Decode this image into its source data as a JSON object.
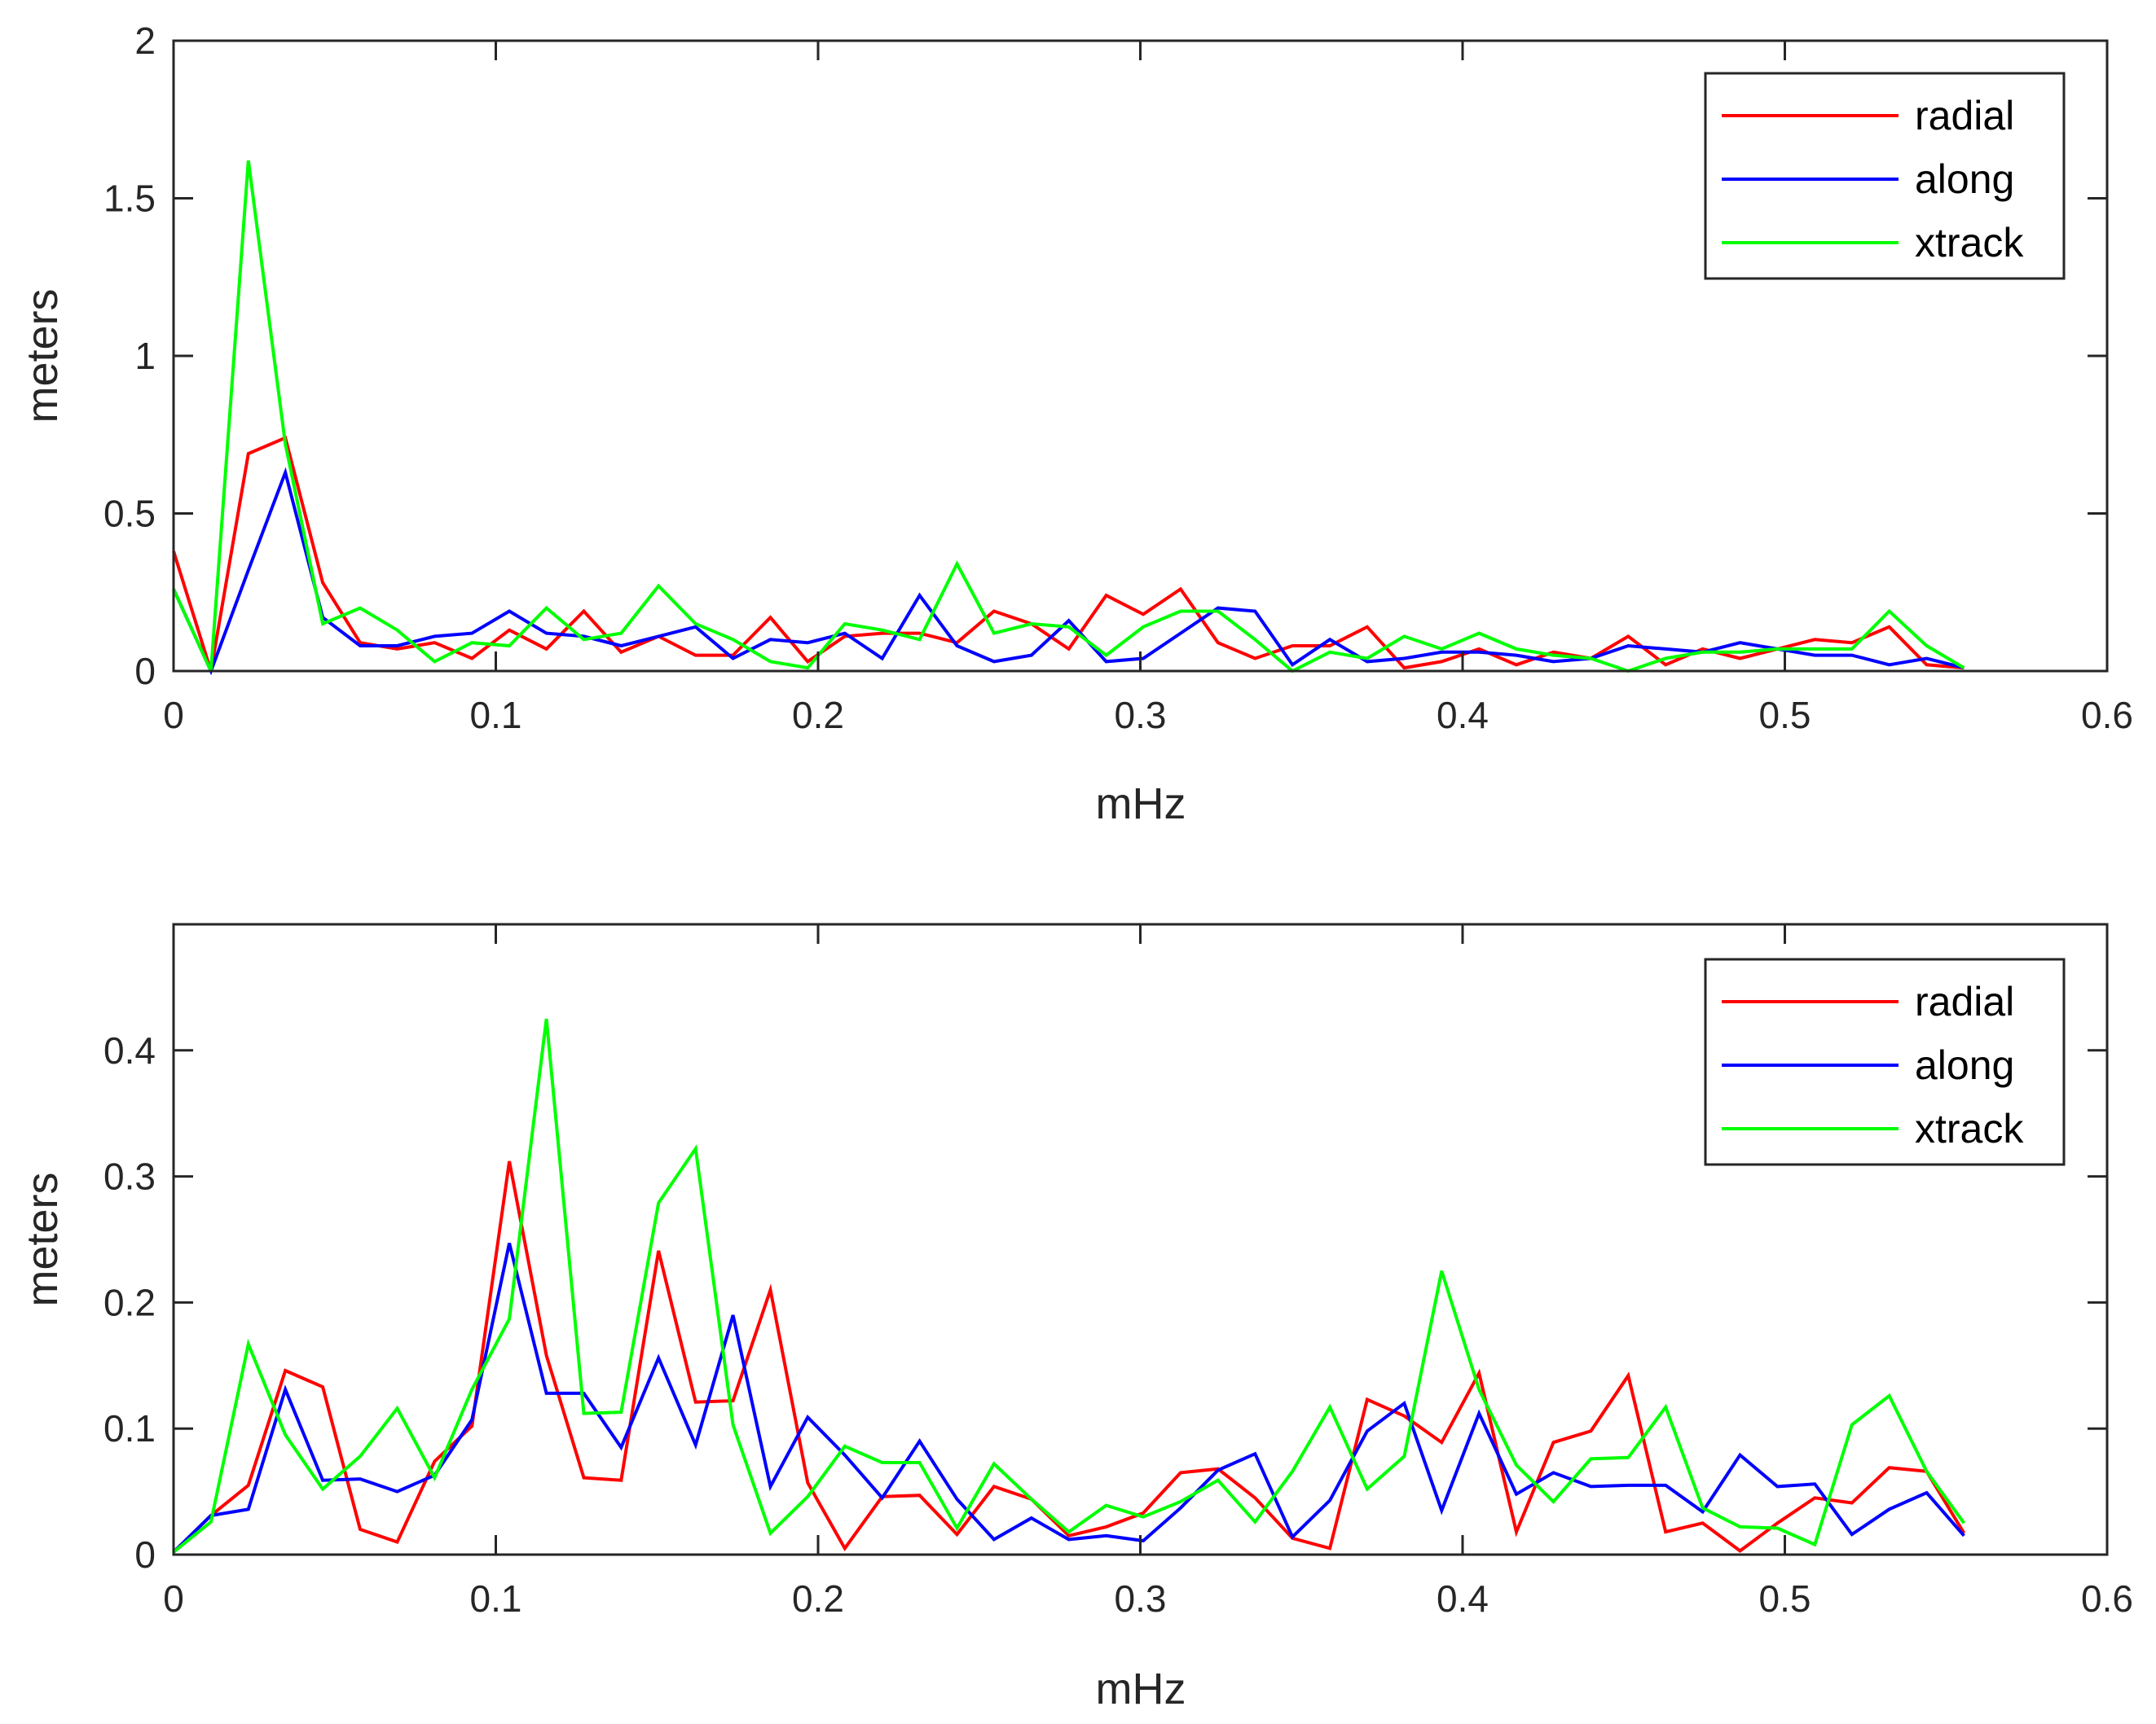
{
  "chart_data": [
    {
      "type": "line",
      "xlabel": "mHz",
      "ylabel": "meters",
      "xlim": [
        0,
        0.6
      ],
      "ylim": [
        0,
        2
      ],
      "xticks": [
        0,
        0.1,
        0.2,
        0.3,
        0.4,
        0.5,
        0.6
      ],
      "xtick_labels": [
        "0",
        "0.1",
        "0.2",
        "0.3",
        "0.4",
        "0.5",
        "0.6"
      ],
      "yticks": [
        0,
        0.5,
        1,
        1.5,
        2
      ],
      "ytick_labels": [
        "0",
        "0.5",
        "1",
        "1.5",
        "2"
      ],
      "legend_position": "top-right",
      "x": [
        0,
        0.0116,
        0.0232,
        0.0347,
        0.0463,
        0.0579,
        0.0694,
        0.081,
        0.0926,
        0.1042,
        0.1157,
        0.1273,
        0.1389,
        0.1505,
        0.162,
        0.1736,
        0.1852,
        0.1968,
        0.2083,
        0.2199,
        0.2315,
        0.2431,
        0.2546,
        0.2662,
        0.2778,
        0.2894,
        0.3009,
        0.3125,
        0.3241,
        0.3356,
        0.3472,
        0.3588,
        0.3704,
        0.3819,
        0.3935,
        0.4051,
        0.4167,
        0.4282,
        0.4398,
        0.4514,
        0.463,
        0.4745,
        0.4861,
        0.4977,
        0.5093,
        0.5208,
        0.5324,
        0.544,
        0.5556
      ],
      "series": [
        {
          "name": "radial",
          "color": "#ff0000",
          "values": [
            0.38,
            0.0,
            0.69,
            0.74,
            0.28,
            0.09,
            0.07,
            0.09,
            0.04,
            0.13,
            0.07,
            0.19,
            0.06,
            0.11,
            0.05,
            0.05,
            0.17,
            0.03,
            0.11,
            0.12,
            0.12,
            0.09,
            0.19,
            0.15,
            0.07,
            0.24,
            0.18,
            0.26,
            0.09,
            0.04,
            0.08,
            0.08,
            0.14,
            0.01,
            0.03,
            0.07,
            0.02,
            0.06,
            0.04,
            0.11,
            0.02,
            0.07,
            0.04,
            0.07,
            0.1,
            0.09,
            0.14,
            0.02,
            0.01
          ]
        },
        {
          "name": "along",
          "color": "#0000ff",
          "values": [
            0.26,
            0.0,
            0.32,
            0.63,
            0.17,
            0.08,
            0.08,
            0.11,
            0.12,
            0.19,
            0.12,
            0.11,
            0.08,
            0.11,
            0.14,
            0.04,
            0.1,
            0.09,
            0.12,
            0.04,
            0.24,
            0.08,
            0.03,
            0.05,
            0.16,
            0.03,
            0.04,
            0.12,
            0.2,
            0.19,
            0.02,
            0.1,
            0.03,
            0.04,
            0.06,
            0.06,
            0.05,
            0.03,
            0.04,
            0.08,
            0.07,
            0.06,
            0.09,
            0.07,
            0.05,
            0.05,
            0.02,
            0.04,
            0.01
          ]
        },
        {
          "name": "xtrack",
          "color": "#00ff00",
          "values": [
            0.26,
            0.0,
            1.62,
            0.72,
            0.15,
            0.2,
            0.13,
            0.03,
            0.09,
            0.08,
            0.2,
            0.1,
            0.12,
            0.27,
            0.15,
            0.1,
            0.03,
            0.01,
            0.15,
            0.13,
            0.1,
            0.34,
            0.12,
            0.15,
            0.14,
            0.05,
            0.14,
            0.19,
            0.19,
            0.1,
            0.0,
            0.06,
            0.04,
            0.11,
            0.07,
            0.12,
            0.07,
            0.05,
            0.04,
            0.0,
            0.04,
            0.06,
            0.06,
            0.07,
            0.07,
            0.07,
            0.19,
            0.08,
            0.01
          ]
        }
      ]
    },
    {
      "type": "line",
      "xlabel": "mHz",
      "ylabel": "meters",
      "xlim": [
        0,
        0.6
      ],
      "ylim": [
        0,
        0.5
      ],
      "xticks": [
        0,
        0.1,
        0.2,
        0.3,
        0.4,
        0.5,
        0.6
      ],
      "xtick_labels": [
        "0",
        "0.1",
        "0.2",
        "0.3",
        "0.4",
        "0.5",
        "0.6"
      ],
      "yticks": [
        0,
        0.1,
        0.2,
        0.3,
        0.4
      ],
      "ytick_labels": [
        "0",
        "0.1",
        "0.2",
        "0.3",
        "0.4"
      ],
      "legend_position": "top-right",
      "x": [
        0,
        0.0116,
        0.0232,
        0.0347,
        0.0463,
        0.0579,
        0.0694,
        0.081,
        0.0926,
        0.1042,
        0.1157,
        0.1273,
        0.1389,
        0.1505,
        0.162,
        0.1736,
        0.1852,
        0.1968,
        0.2083,
        0.2199,
        0.2315,
        0.2431,
        0.2546,
        0.2662,
        0.2778,
        0.2894,
        0.3009,
        0.3125,
        0.3241,
        0.3356,
        0.3472,
        0.3588,
        0.3704,
        0.3819,
        0.3935,
        0.4051,
        0.4167,
        0.4282,
        0.4398,
        0.4514,
        0.463,
        0.4745,
        0.4861,
        0.4977,
        0.5093,
        0.5208,
        0.5324,
        0.544,
        0.5556
      ],
      "series": [
        {
          "name": "radial",
          "color": "#ff0000",
          "values": [
            0.002,
            0.031,
            0.055,
            0.146,
            0.133,
            0.02,
            0.01,
            0.074,
            0.102,
            0.312,
            0.158,
            0.061,
            0.059,
            0.241,
            0.121,
            0.122,
            0.21,
            0.057,
            0.005,
            0.046,
            0.047,
            0.016,
            0.054,
            0.044,
            0.015,
            0.022,
            0.033,
            0.065,
            0.068,
            0.045,
            0.013,
            0.005,
            0.123,
            0.11,
            0.089,
            0.144,
            0.018,
            0.089,
            0.098,
            0.142,
            0.018,
            0.025,
            0.003,
            0.025,
            0.045,
            0.041,
            0.069,
            0.066,
            0.017
          ]
        },
        {
          "name": "along",
          "color": "#0000ff",
          "values": [
            0.002,
            0.031,
            0.036,
            0.131,
            0.059,
            0.06,
            0.05,
            0.063,
            0.107,
            0.247,
            0.128,
            0.128,
            0.085,
            0.156,
            0.087,
            0.19,
            0.054,
            0.109,
            0.079,
            0.045,
            0.09,
            0.044,
            0.012,
            0.029,
            0.012,
            0.015,
            0.011,
            0.037,
            0.067,
            0.08,
            0.014,
            0.043,
            0.098,
            0.12,
            0.035,
            0.112,
            0.048,
            0.065,
            0.054,
            0.055,
            0.055,
            0.034,
            0.079,
            0.054,
            0.056,
            0.016,
            0.036,
            0.049,
            0.015
          ]
        },
        {
          "name": "xtrack",
          "color": "#00ff00",
          "values": [
            0.002,
            0.026,
            0.167,
            0.095,
            0.052,
            0.078,
            0.116,
            0.061,
            0.131,
            0.187,
            0.425,
            0.112,
            0.113,
            0.279,
            0.322,
            0.103,
            0.017,
            0.046,
            0.086,
            0.073,
            0.073,
            0.021,
            0.072,
            0.044,
            0.018,
            0.039,
            0.03,
            0.042,
            0.059,
            0.026,
            0.066,
            0.117,
            0.052,
            0.078,
            0.225,
            0.131,
            0.071,
            0.042,
            0.076,
            0.077,
            0.117,
            0.037,
            0.022,
            0.021,
            0.008,
            0.103,
            0.126,
            0.066,
            0.025
          ]
        }
      ]
    }
  ]
}
